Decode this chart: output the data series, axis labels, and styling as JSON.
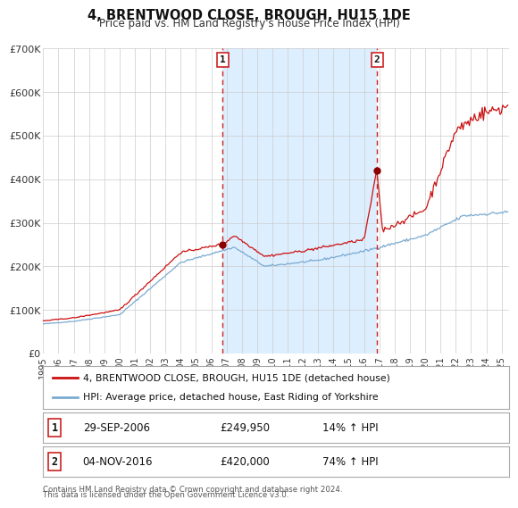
{
  "title": "4, BRENTWOOD CLOSE, BROUGH, HU15 1DE",
  "subtitle": "Price paid vs. HM Land Registry's House Price Index (HPI)",
  "background_color": "#ffffff",
  "plot_bg_color": "#ffffff",
  "grid_color": "#cccccc",
  "ylim": [
    0,
    700000
  ],
  "xlim_start": 1995.0,
  "xlim_end": 2025.5,
  "yticks": [
    0,
    100000,
    200000,
    300000,
    400000,
    500000,
    600000,
    700000
  ],
  "ytick_labels": [
    "£0",
    "£100K",
    "£200K",
    "£300K",
    "£400K",
    "£500K",
    "£600K",
    "£700K"
  ],
  "xticks": [
    1995,
    1996,
    1997,
    1998,
    1999,
    2000,
    2001,
    2002,
    2003,
    2004,
    2005,
    2006,
    2007,
    2008,
    2009,
    2010,
    2011,
    2012,
    2013,
    2014,
    2015,
    2016,
    2017,
    2018,
    2019,
    2020,
    2021,
    2022,
    2023,
    2024,
    2025
  ],
  "sale1_date": 2006.75,
  "sale1_price": 249950,
  "sale1_label": "1",
  "sale2_date": 2016.84,
  "sale2_price": 420000,
  "sale2_label": "2",
  "shaded_region_color": "#ddeeff",
  "dashed_line_color": "#cc2222",
  "red_line_color": "#cc1111",
  "blue_line_color": "#7aaad0",
  "legend_red_label": "4, BRENTWOOD CLOSE, BROUGH, HU15 1DE (detached house)",
  "legend_blue_label": "HPI: Average price, detached house, East Riding of Yorkshire",
  "table_row1": [
    "1",
    "29-SEP-2006",
    "£249,950",
    "14% ↑ HPI"
  ],
  "table_row2": [
    "2",
    "04-NOV-2016",
    "£420,000",
    "74% ↑ HPI"
  ],
  "footnote1": "Contains HM Land Registry data © Crown copyright and database right 2024.",
  "footnote2": "This data is licensed under the Open Government Licence v3.0."
}
